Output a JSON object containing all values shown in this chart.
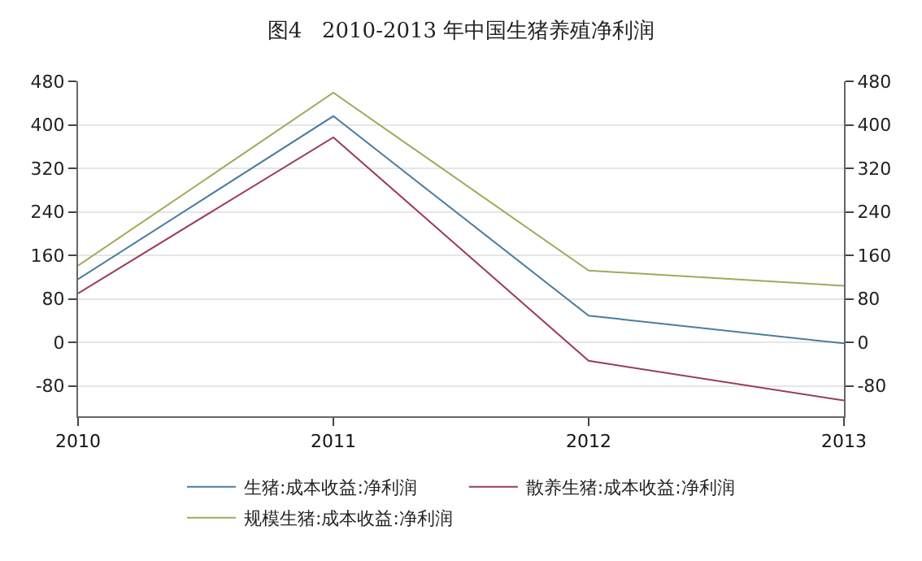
{
  "chart_data": {
    "type": "line",
    "title": "图4   2010-2013 年中国生猪养殖净利润",
    "x": [
      2010,
      2011,
      2012,
      2013
    ],
    "series": [
      {
        "name": "生猪:成本收益:净利润",
        "color": "#4a7ca0",
        "values": [
          116,
          416,
          49,
          -2
        ]
      },
      {
        "name": "散养生猪:成本收益:净利润",
        "color": "#9b3b5a",
        "values": [
          90,
          377,
          -34,
          -107
        ]
      },
      {
        "name": "规模生猪:成本收益:净利润",
        "color": "#a4a85a",
        "values": [
          141,
          459,
          132,
          104
        ]
      }
    ],
    "xlim": [
      2010,
      2013
    ],
    "xticks": [
      2010,
      2011,
      2012,
      2013
    ],
    "ylim": [
      -136,
      480
    ],
    "yticks": [
      -80,
      0,
      80,
      160,
      240,
      320,
      400,
      480
    ],
    "y2lim": [
      -136,
      480
    ],
    "y2ticks": [
      -80,
      0,
      80,
      160,
      240,
      320,
      400,
      480
    ],
    "grid": "y",
    "legend": "bottom",
    "marker": "none",
    "line_style": "solid"
  }
}
